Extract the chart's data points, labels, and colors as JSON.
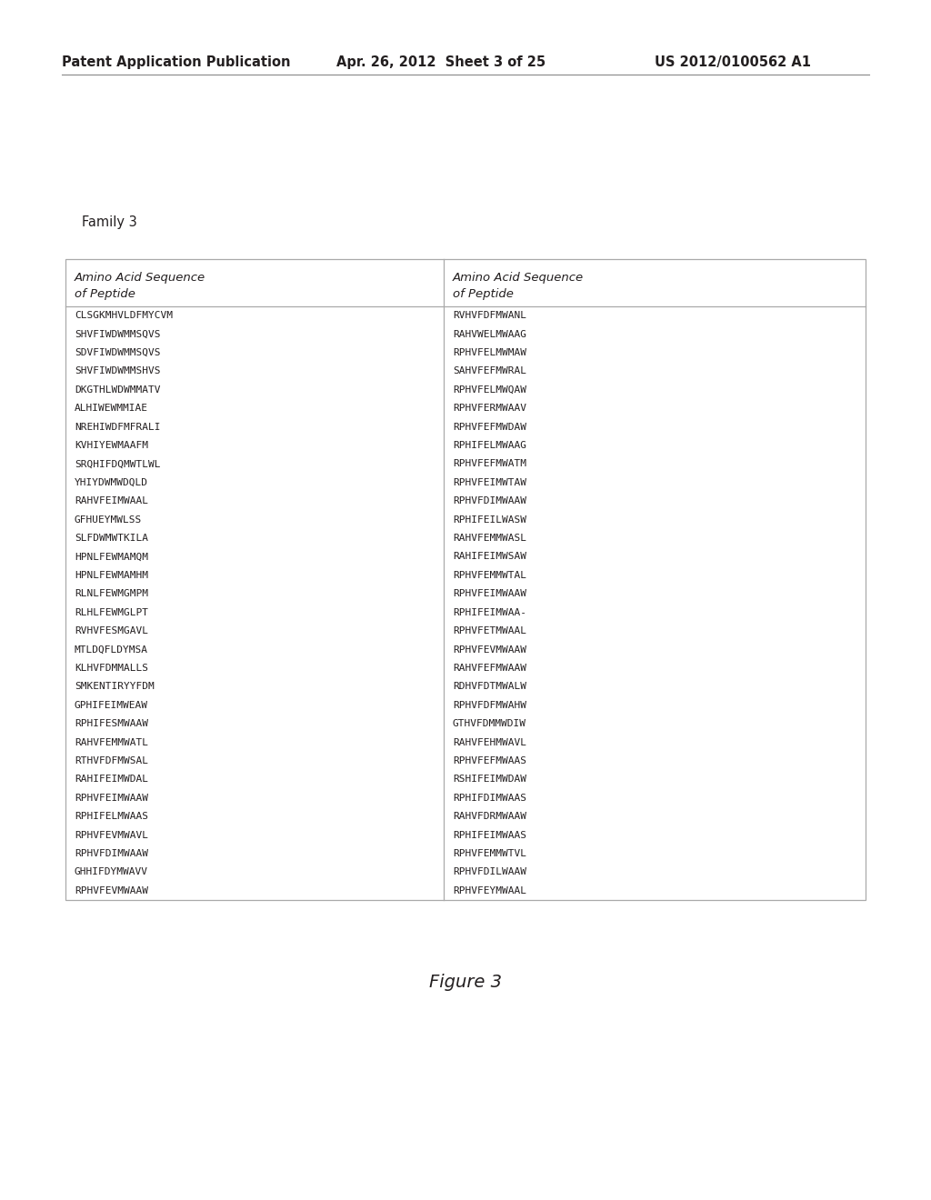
{
  "header_left": "Patent Application Publication",
  "header_mid": "Apr. 26, 2012  Sheet 3 of 25",
  "header_right": "US 2012/0100562 A1",
  "family_label": "Family 3",
  "col_header_left": "Amino Acid Sequence\nof Peptide",
  "col_header_right": "Amino Acid Sequence\nof Peptide",
  "left_col": [
    "CLSGKMHVLDFMYCVM",
    "SHVFIWDWMMSQVS",
    "SDVFIWDWMMSQVS",
    "SHVFIWDWMMSHVS",
    "DKGTHLWDWMMATV",
    "ALHIWEWMMIAE",
    "NREHIWDFMFRALI",
    "KVHIYEWMAAFM",
    "SRQHIFDQMWTLWL",
    "YHIYDWMWDQLD",
    "RAHVFEIMWAAL",
    "GFHUEYMWLSS",
    "SLFDWMWTKILA",
    "HPNLFEWMAMQM",
    "HPNLFEWMAMHM",
    "RLNLFEWMGMPM",
    "RLHLFEWMGLPT",
    "RVHVFESMGAVL",
    "MTLDQFLDYMSA",
    "KLHVFDMMALLS",
    "SMKENTIRYYFDM",
    "GPHIFEIMWEAW",
    "RPHIFESMWAAW",
    "RAHVFEMMWATL",
    "RTHVFDFMWSAL",
    "RAHIFEIMWDAL",
    "RPHVFEIMWAAW",
    "RPHIFELMWAAS",
    "RPHVFEVMWAVL",
    "RPHVFDIMWAAW",
    "GHHIFDYMWAVV",
    "RPHVFEVMWAAW"
  ],
  "right_col": [
    "RVHVFDFMWANL",
    "RAHVWELMWAAG",
    "RPHVFELMWMAW",
    "SAHVFEFMWRAL",
    "RPHVFELMWQAW",
    "RPHVFERMWAAV",
    "RPHVFEFMWDAW",
    "RPHIFELMWAAG",
    "RPHVFEFMWATM",
    "RPHVFEIMWTAW",
    "RPHVFDIMWAAW",
    "RPHIFEILWASW",
    "RAHVFEMMWASL",
    "RAHIFEIMWSAW",
    "RPHVFEMMWTAL",
    "RPHVFEIMWAAW",
    "RPHIFEIMWAA-",
    "RPHVFETMWAAL",
    "RPHVFEVMWAAW",
    "RAHVFEFMWAAW",
    "RDHVFDTMWALW",
    "RPHVFDFMWAHW",
    "GTHVFDMMWDIW",
    "RAHVFEHMWAVL",
    "RPHVFEFMWAAS",
    "RSHIFEIMWDAW",
    "RPHIFDIMWAAS",
    "RAHVFDRMWAAW",
    "RPHIFEIMWAAS",
    "RPHVFEMMWTVL",
    "RPHVFDILWAAW",
    "RPHVFEYMWAAL"
  ],
  "figure_label": "Figure 3",
  "bg_color": "#ffffff",
  "text_color": "#231f20",
  "border_color": "#aaaaaa",
  "font_size_patent_header": 10.5,
  "font_size_family": 10.5,
  "font_size_col_header": 9.5,
  "font_size_body": 8.0,
  "font_size_figure": 14
}
